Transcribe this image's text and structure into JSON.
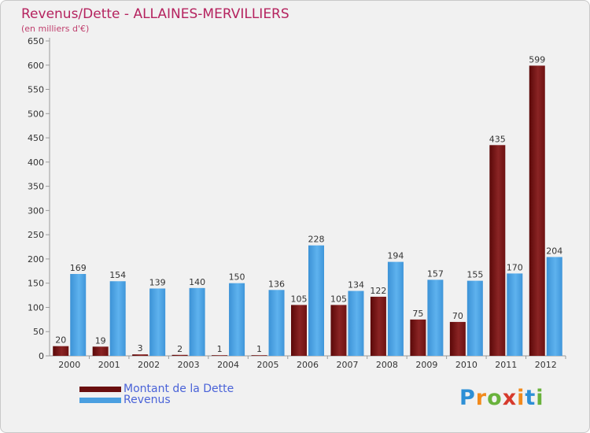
{
  "chart_data": {
    "type": "bar",
    "title": "Revenus/Dette - ALLAINES-MERVILLIERS",
    "subtitle": "(en milliers d'€)",
    "categories": [
      "2000",
      "2001",
      "2002",
      "2003",
      "2004",
      "2005",
      "2006",
      "2007",
      "2008",
      "2009",
      "2010",
      "2011",
      "2012"
    ],
    "series": [
      {
        "name": "Montant de la Dette",
        "color": "#7a1a1a",
        "values": [
          20,
          19,
          3,
          2,
          1,
          1,
          105,
          105,
          122,
          75,
          70,
          435,
          599
        ]
      },
      {
        "name": "Revenus",
        "color": "#4aa3e6",
        "values": [
          169,
          154,
          139,
          140,
          150,
          136,
          228,
          134,
          194,
          157,
          155,
          170,
          204
        ]
      }
    ],
    "ylim": [
      0,
      650
    ],
    "ytick_step": 50,
    "grid": false,
    "legend_position": "bottom-left"
  },
  "legend": {
    "debt_label": "Montant de la Dette",
    "revenue_label": "Revenus"
  },
  "logo": {
    "text": "Proxiti",
    "letter_colors": [
      "#2d8fd6",
      "#f28a1c",
      "#69b23c",
      "#d63a2c",
      "#f28a1c",
      "#2d8fd6",
      "#69b23c"
    ]
  }
}
